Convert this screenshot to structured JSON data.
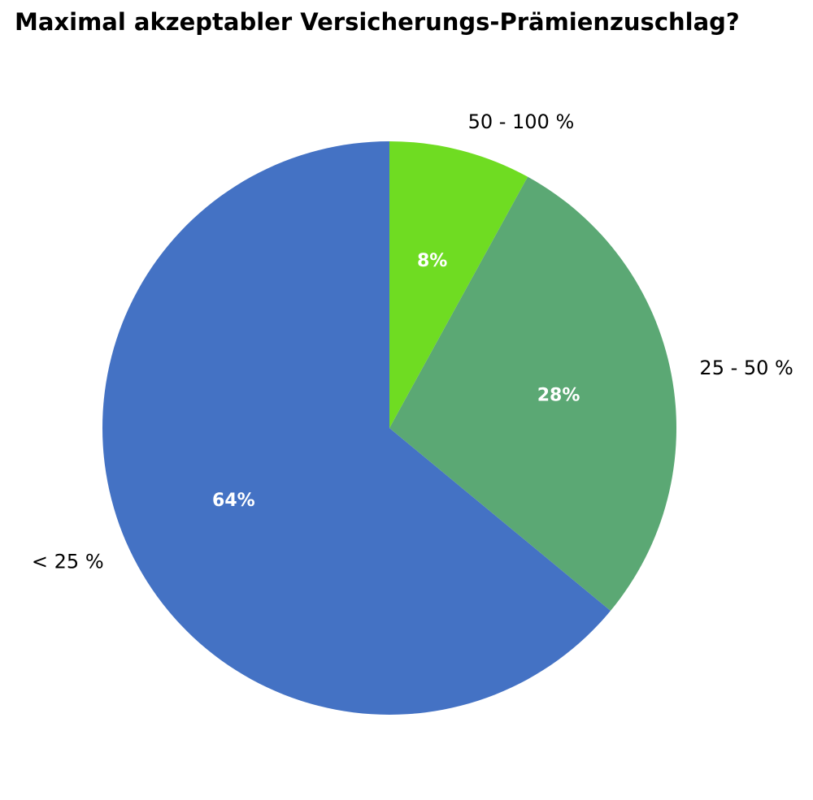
{
  "chart_data": {
    "type": "pie",
    "title": "Maximal akzeptabler Versicherungs-Prämienzuschlag?",
    "categories": [
      "< 25 %",
      "25 - 50 %",
      "50 - 100 %"
    ],
    "values": [
      64,
      28,
      8
    ],
    "value_labels": [
      "64%",
      "28%",
      "8%"
    ],
    "colors": [
      "#4472c4",
      "#5ba874",
      "#6fdc22"
    ],
    "start_angle_deg": 90,
    "direction": "counterclockwise",
    "legend": "none"
  }
}
